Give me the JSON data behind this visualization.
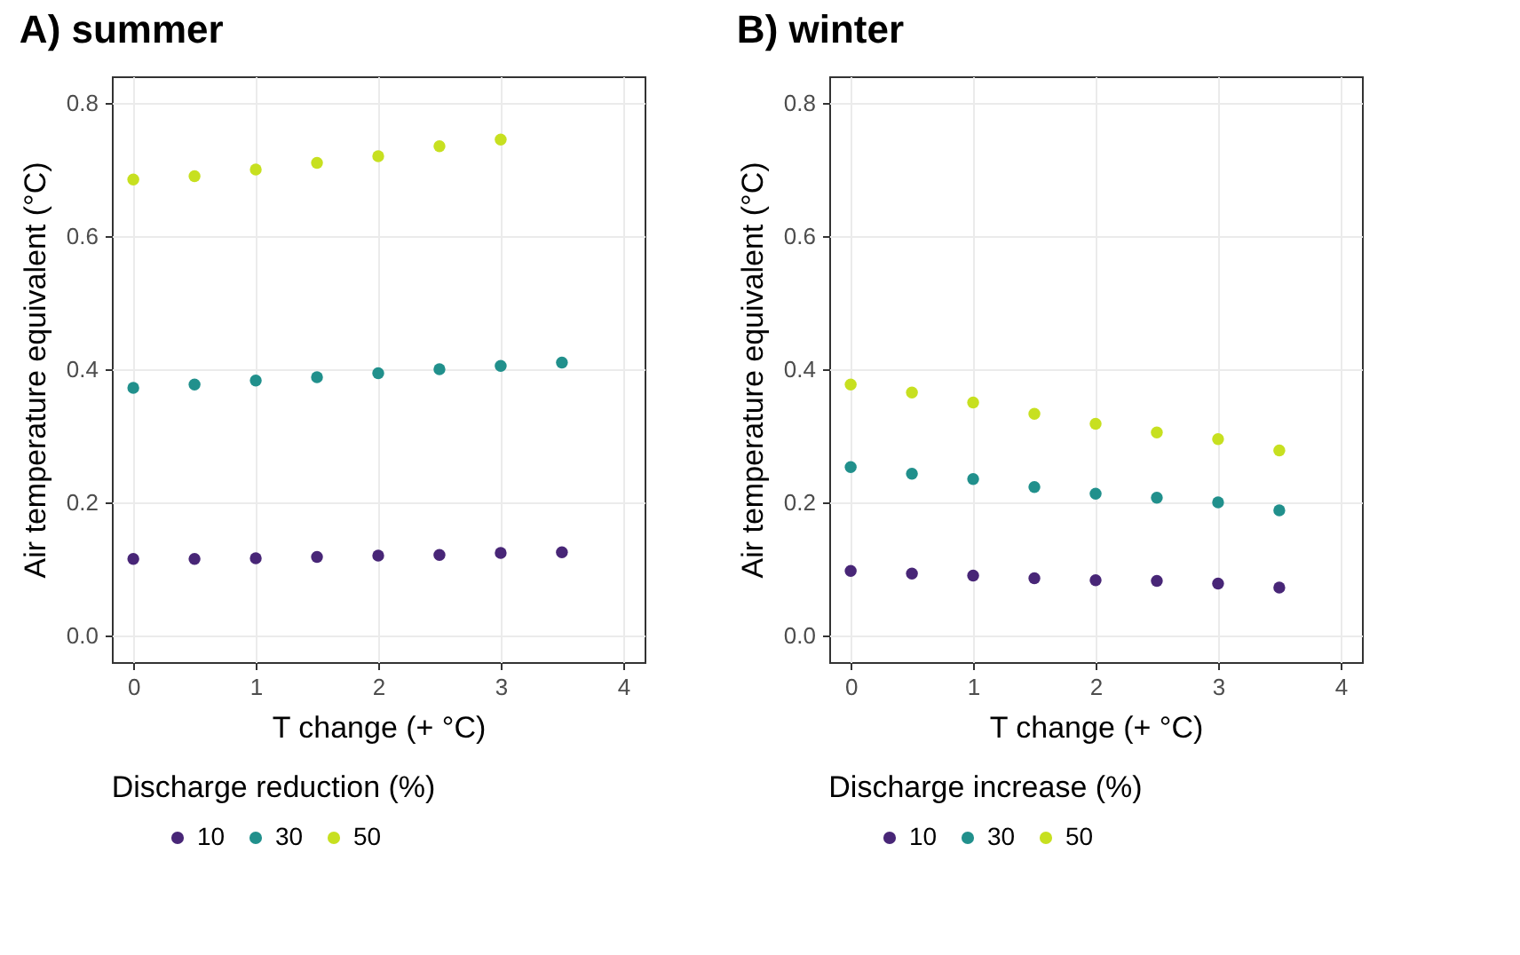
{
  "chart_data": [
    {
      "type": "scatter",
      "title": "A) summer",
      "xlabel": "T change (+ °C)",
      "ylabel": "Air temperature equivalent (°C)",
      "legend_title": "Discharge reduction (%)",
      "legend": "bottom",
      "grid": true,
      "marker": "circle",
      "x": [
        0,
        0.5,
        1,
        1.5,
        2,
        2.5,
        3,
        3.5
      ],
      "xlim": [
        -0.175,
        4.175
      ],
      "ylim": [
        -0.04,
        0.84
      ],
      "xticks": [
        0,
        1,
        2,
        3,
        4
      ],
      "yticks": [
        {
          "value": 0,
          "label": "0.0"
        },
        0.2,
        0.4,
        0.6,
        0.8
      ],
      "series": [
        {
          "name": "10",
          "color": "#482677",
          "values": [
            0.115,
            0.115,
            0.116,
            0.118,
            0.12,
            0.121,
            0.124,
            0.125
          ]
        },
        {
          "name": "30",
          "color": "#21908c",
          "values": [
            0.372,
            0.377,
            0.383,
            0.388,
            0.394,
            0.4,
            0.405,
            0.41
          ]
        },
        {
          "name": "50",
          "color": "#c7e020",
          "values": [
            0.685,
            0.69,
            0.7,
            0.71,
            0.72,
            0.735,
            0.745,
            null
          ]
        }
      ]
    },
    {
      "type": "scatter",
      "title": "B) winter",
      "xlabel": "T change (+ °C)",
      "ylabel": "Air temperature equivalent (°C)",
      "legend_title": "Discharge increase (%)",
      "legend": "bottom",
      "grid": true,
      "marker": "circle",
      "x": [
        0,
        0.5,
        1,
        1.5,
        2,
        2.5,
        3,
        3.5
      ],
      "xlim": [
        -0.175,
        4.175
      ],
      "ylim": [
        -0.04,
        0.84
      ],
      "xticks": [
        0,
        1,
        2,
        3,
        4
      ],
      "yticks": [
        {
          "value": 0,
          "label": "0.0"
        },
        0.2,
        0.4,
        0.6,
        0.8
      ],
      "series": [
        {
          "name": "10",
          "color": "#482677",
          "values": [
            0.097,
            0.093,
            0.09,
            0.086,
            0.083,
            0.082,
            0.078,
            0.072
          ]
        },
        {
          "name": "30",
          "color": "#21908c",
          "values": [
            0.253,
            0.243,
            0.235,
            0.223,
            0.213,
            0.207,
            0.2,
            0.188
          ]
        },
        {
          "name": "50",
          "color": "#c7e020",
          "values": [
            0.377,
            0.365,
            0.35,
            0.333,
            0.318,
            0.305,
            0.295,
            0.278
          ]
        }
      ]
    }
  ]
}
